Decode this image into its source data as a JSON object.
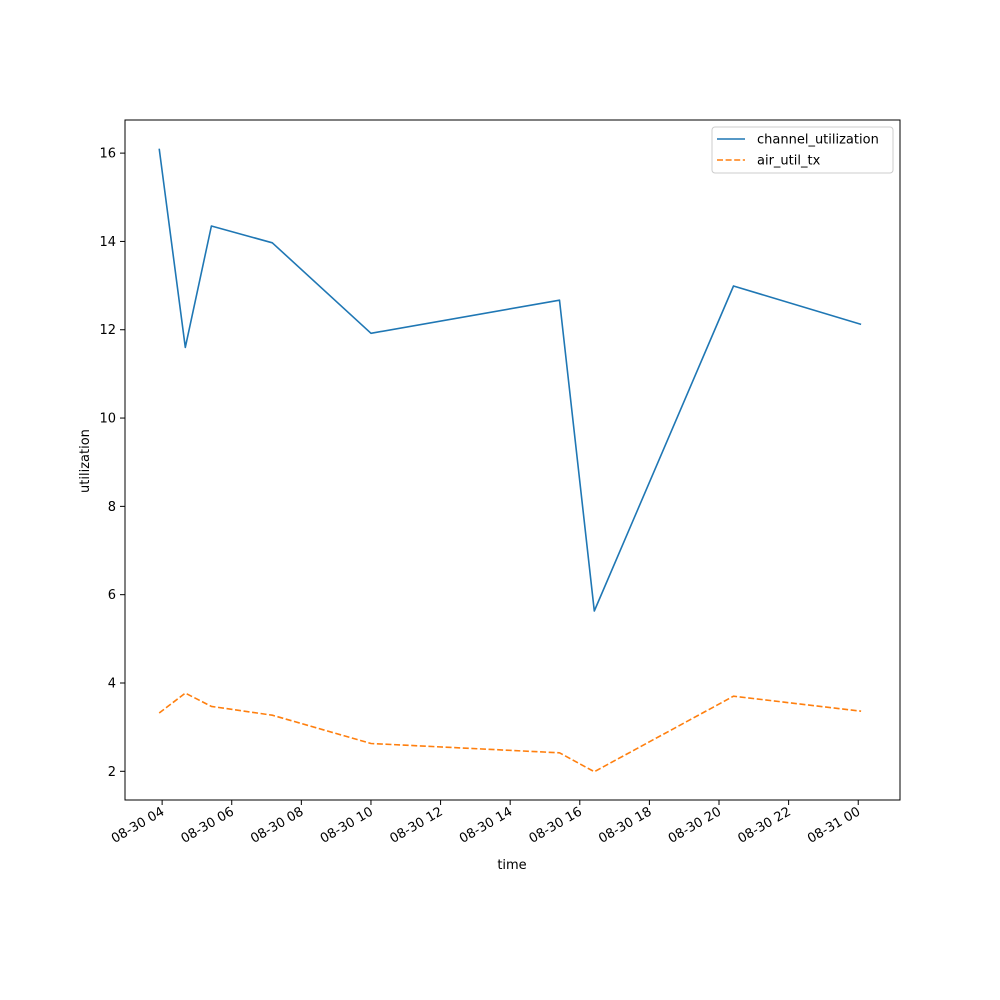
{
  "chart_data": {
    "type": "line",
    "title": "",
    "xlabel": "time",
    "ylabel": "utilization",
    "x_ticks": [
      "08-30 04",
      "08-30 06",
      "08-30 08",
      "08-30 10",
      "08-30 12",
      "08-30 14",
      "08-30 16",
      "08-30 18",
      "08-30 20",
      "08-30 22",
      "08-31 00"
    ],
    "xlim": [
      "2023-08-30 02:56",
      "2023-08-31 01:12"
    ],
    "y_ticks": [
      2,
      4,
      6,
      8,
      10,
      12,
      14,
      16
    ],
    "ylim": [
      1.35,
      16.75
    ],
    "x": [
      "2023-08-30 03:55",
      "2023-08-30 04:40",
      "2023-08-30 05:25",
      "2023-08-30 07:10",
      "2023-08-30 10:00",
      "2023-08-30 15:25",
      "2023-08-30 16:25",
      "2023-08-30 20:25",
      "2023-08-31 00:05"
    ],
    "series": [
      {
        "name": "channel_utilization",
        "color": "#1f77b4",
        "style": "solid",
        "values": [
          16.1,
          11.6,
          14.35,
          13.97,
          11.92,
          12.67,
          5.63,
          12.99,
          12.12
        ]
      },
      {
        "name": "air_util_tx",
        "color": "#ff7f0e",
        "style": "dashed",
        "values": [
          3.32,
          3.77,
          3.47,
          3.27,
          2.63,
          2.42,
          1.99,
          3.7,
          3.36
        ]
      }
    ],
    "grid": false,
    "legend_position": "top-right"
  }
}
